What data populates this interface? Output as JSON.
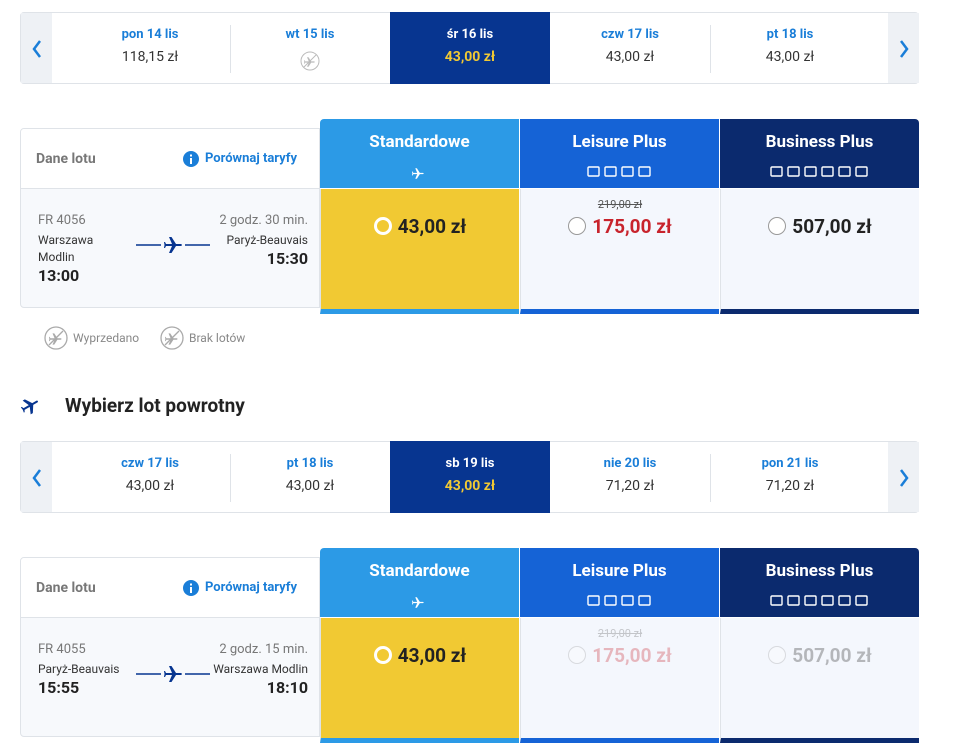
{
  "outbound": {
    "dates": [
      {
        "day": "pon 14 lis",
        "price": "118,15 zł"
      },
      {
        "day": "wt 15 lis"
      },
      {
        "day": "śr 16 lis",
        "price": "43,00 zł",
        "selected": true
      },
      {
        "day": "czw 17 lis",
        "price": "43,00 zł"
      },
      {
        "day": "pt 18 lis",
        "price": "43,00 zł"
      }
    ],
    "details_label": "Dane lotu",
    "compare_label": "Porównaj taryfy",
    "fares": [
      {
        "name": "Standardowe",
        "price": "43,00 zł",
        "selected": true
      },
      {
        "name": "Leisure Plus",
        "old_price": "219,00 zł",
        "price": "175,00 zł"
      },
      {
        "name": "Business Plus",
        "price": "507,00 zł"
      }
    ],
    "flight": {
      "number": "FR 4056",
      "duration": "2 godz. 30 min.",
      "origin": "Warszawa Modlin",
      "departure": "13:00",
      "destination": "Paryż-Beauvais",
      "arrival": "15:30"
    }
  },
  "legend": [
    {
      "label": "Wyprzedano"
    },
    {
      "label": "Brak lotów"
    }
  ],
  "return_title": "Wybierz lot powrotny",
  "return": {
    "dates": [
      {
        "day": "czw 17 lis",
        "price": "43,00 zł"
      },
      {
        "day": "pt 18 lis",
        "price": "43,00 zł"
      },
      {
        "day": "sb 19 lis",
        "price": "43,00 zł",
        "selected": true
      },
      {
        "day": "nie 20 lis",
        "price": "71,20 zł"
      },
      {
        "day": "pon 21 lis",
        "price": "71,20 zł"
      }
    ],
    "details_label": "Dane lotu",
    "compare_label": "Porównaj taryfy",
    "fares": [
      {
        "name": "Standardowe",
        "price": "43,00 zł",
        "selected": true
      },
      {
        "name": "Leisure Plus",
        "old_price": "219,00 zł",
        "price": "175,00 zł",
        "available": false
      },
      {
        "name": "Business Plus",
        "price": "507,00 zł",
        "available": false
      }
    ],
    "flight": {
      "number": "FR 4055",
      "duration": "2 godz. 15 min.",
      "origin": "Paryż-Beauvais",
      "departure": "15:55",
      "destination": "Warszawa Modlin",
      "arrival": "18:10"
    }
  }
}
